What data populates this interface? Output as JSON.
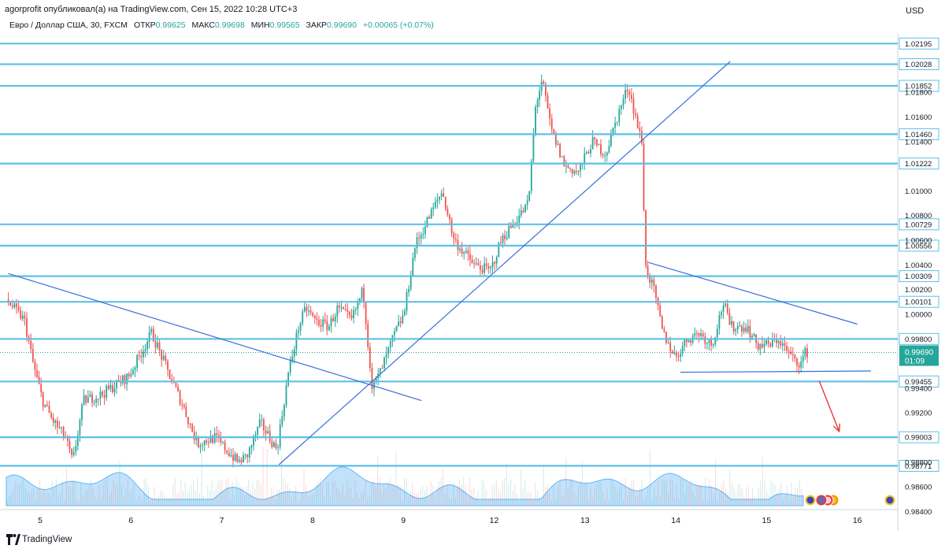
{
  "header": {
    "published": "agorprofit опубликовал(а) на TradingView.com, Сен 15, 2022 10:28 UTC+3",
    "currency": "USD"
  },
  "legend": {
    "symbol": "Евро / Доллар США, 30, FXCM",
    "open_label": "ОТКР",
    "open": "0.99625",
    "high_label": "МАКС",
    "high": "0.99698",
    "low_label": "МИН",
    "low": "0.99565",
    "close_label": "ЗАКР",
    "close": "0.99690",
    "change": "+0.00065 (+0.07%)"
  },
  "footer": {
    "brand": "TradingView"
  },
  "chart_data": {
    "type": "candlestick",
    "ylim": [
      0.9832,
      1.0228
    ],
    "y_ticks": [
      1.018,
      1.016,
      1.014,
      1.01,
      1.008,
      1.006,
      1.004,
      1.002,
      1.0,
      0.994,
      0.992,
      0.988,
      0.986,
      0.984
    ],
    "x_ticks": [
      {
        "label": "5",
        "t": 0
      },
      {
        "label": "6",
        "t": 1
      },
      {
        "label": "7",
        "t": 2
      },
      {
        "label": "8",
        "t": 3
      },
      {
        "label": "9",
        "t": 4
      },
      {
        "label": "12",
        "t": 5
      },
      {
        "label": "13",
        "t": 6
      },
      {
        "label": "14",
        "t": 7
      },
      {
        "label": "15",
        "t": 8
      },
      {
        "label": "16",
        "t": 9
      }
    ],
    "levels": [
      1.02195,
      1.02028,
      1.01852,
      1.0146,
      1.01222,
      1.00729,
      1.00556,
      1.00309,
      1.00101,
      0.998,
      0.99455,
      0.99003,
      0.98771
    ],
    "current": {
      "price": "0.99690",
      "timer": "01:09",
      "value": 0.9969
    },
    "anchors": [
      [
        -0.35,
        1.0012
      ],
      [
        -0.15,
        0.9995
      ],
      [
        -0.05,
        0.9958
      ],
      [
        0.05,
        0.993
      ],
      [
        0.15,
        0.9915
      ],
      [
        0.3,
        0.99
      ],
      [
        0.38,
        0.988
      ],
      [
        0.5,
        0.993
      ],
      [
        0.7,
        0.9935
      ],
      [
        1.0,
        0.995
      ],
      [
        1.25,
        0.9985
      ],
      [
        1.45,
        0.995
      ],
      [
        1.6,
        0.9925
      ],
      [
        1.75,
        0.9895
      ],
      [
        1.95,
        0.99
      ],
      [
        2.2,
        0.988
      ],
      [
        2.3,
        0.9885
      ],
      [
        2.45,
        0.9912
      ],
      [
        2.63,
        0.989
      ],
      [
        2.75,
        0.995
      ],
      [
        2.87,
        0.999
      ],
      [
        2.95,
        1.0005
      ],
      [
        3.05,
        0.9995
      ],
      [
        3.2,
        0.999
      ],
      [
        3.3,
        1.0005
      ],
      [
        3.45,
        0.9995
      ],
      [
        3.58,
        1.002
      ],
      [
        3.68,
        0.994
      ],
      [
        3.78,
        0.9955
      ],
      [
        3.93,
        0.9985
      ],
      [
        4.03,
        1.0
      ],
      [
        4.15,
        1.0055
      ],
      [
        4.28,
        1.0075
      ],
      [
        4.45,
        1.01
      ],
      [
        4.58,
        1.006
      ],
      [
        4.8,
        1.004
      ],
      [
        4.98,
        1.0035
      ],
      [
        5.1,
        1.006
      ],
      [
        5.25,
        1.0075
      ],
      [
        5.4,
        1.009
      ],
      [
        5.48,
        1.017
      ],
      [
        5.55,
        1.019
      ],
      [
        5.65,
        1.015
      ],
      [
        5.8,
        1.012
      ],
      [
        5.95,
        1.0115
      ],
      [
        6.1,
        1.014
      ],
      [
        6.25,
        1.013
      ],
      [
        6.4,
        1.0165
      ],
      [
        6.5,
        1.0185
      ],
      [
        6.66,
        1.0135
      ],
      [
        6.68,
        1.004
      ],
      [
        6.78,
        1.002
      ],
      [
        6.88,
        0.9985
      ],
      [
        7.02,
        0.9965
      ],
      [
        7.15,
        0.998
      ],
      [
        7.28,
        0.9985
      ],
      [
        7.42,
        0.9975
      ],
      [
        7.55,
        1.001
      ],
      [
        7.62,
        0.999
      ],
      [
        7.8,
        0.999
      ],
      [
        7.92,
        0.9975
      ],
      [
        8.05,
        0.9975
      ],
      [
        8.15,
        0.998
      ],
      [
        8.3,
        0.9965
      ],
      [
        8.4,
        0.996
      ],
      [
        8.45,
        0.9969
      ]
    ],
    "drawings": {
      "downtrend_left": [
        [
          -0.35,
          1.0033
        ],
        [
          4.2,
          0.993
        ]
      ],
      "uptrend_main": [
        [
          2.63,
          0.9878
        ],
        [
          7.6,
          1.0205
        ]
      ],
      "downtrend_right": [
        [
          6.7,
          1.0042
        ],
        [
          9.0,
          0.9992
        ]
      ],
      "support_bottom": [
        [
          7.05,
          0.9953
        ],
        [
          9.15,
          0.9954
        ]
      ],
      "arrow_red": [
        [
          8.58,
          0.9946
        ],
        [
          8.8,
          0.9905
        ]
      ]
    }
  }
}
